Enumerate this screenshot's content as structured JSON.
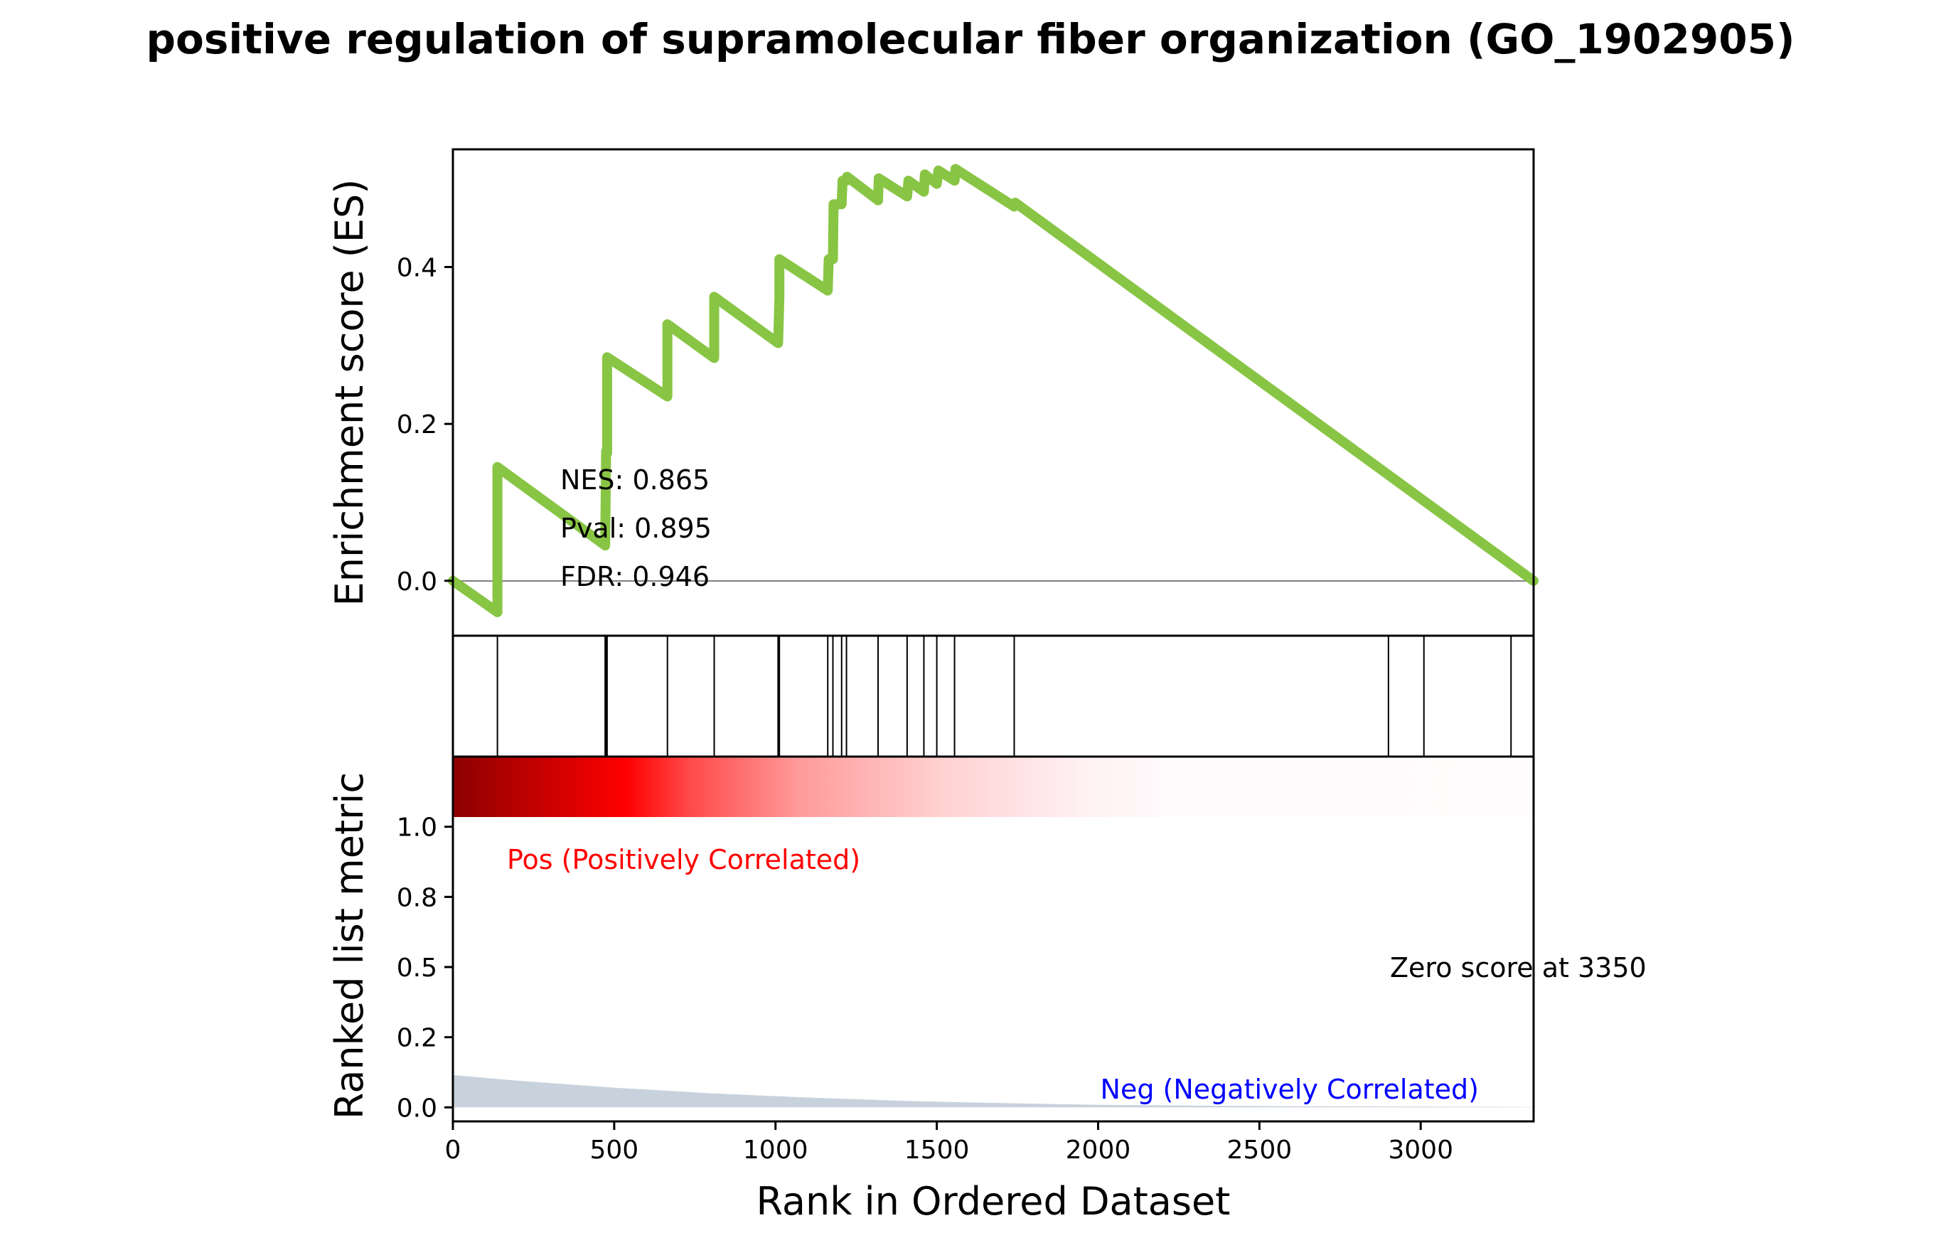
{
  "chart_data": {
    "type": "line",
    "title": "positive regulation of supramolecular fiber organization (GO_1902905)",
    "xlabel": "Rank in Ordered Dataset",
    "xlim": [
      0,
      3350
    ],
    "x_ticks": [
      "0",
      "500",
      "1000",
      "1500",
      "2000",
      "2500",
      "3000"
    ],
    "x_tick_values": [
      0,
      500,
      1000,
      1500,
      2000,
      2500,
      3000
    ],
    "es_panel": {
      "ylabel": "Enrichment score (ES)",
      "ylim": [
        -0.07,
        0.55
      ],
      "y_ticks": [
        "0.0",
        "0.2",
        "0.4"
      ],
      "y_tick_values": [
        0.0,
        0.2,
        0.4
      ],
      "series": [
        {
          "color": "#88c544",
          "x": [
            0,
            138,
            138,
            472,
            475,
            478,
            478,
            665,
            665,
            810,
            810,
            1008,
            1012,
            1012,
            1162,
            1165,
            1178,
            1180,
            1205,
            1208,
            1220,
            1222,
            1318,
            1320,
            1408,
            1412,
            1460,
            1463,
            1500,
            1505,
            1555,
            1558,
            1740,
            1743,
            3350
          ],
          "y": [
            0.0,
            -0.04,
            0.145,
            0.045,
            0.165,
            0.163,
            0.285,
            0.235,
            0.327,
            0.284,
            0.362,
            0.303,
            0.36,
            0.41,
            0.37,
            0.41,
            0.41,
            0.48,
            0.48,
            0.51,
            0.51,
            0.515,
            0.485,
            0.513,
            0.49,
            0.51,
            0.496,
            0.518,
            0.506,
            0.523,
            0.51,
            0.525,
            0.477,
            0.482,
            0.0
          ]
        }
      ],
      "annotations": [
        "NES: 0.865",
        "Pval: 0.895",
        "FDR: 0.946"
      ]
    },
    "hits_panel": {
      "hit_ranks": [
        138,
        472,
        475,
        478,
        665,
        810,
        1008,
        1012,
        1162,
        1178,
        1205,
        1220,
        1318,
        1408,
        1460,
        1500,
        1555,
        1740,
        2900,
        3010,
        3280
      ]
    },
    "metric_panel": {
      "ylabel": "Ranked list metric",
      "ylim": [
        -0.05,
        1.25
      ],
      "y_ticks": [
        "0.0",
        "0.2",
        "0.5",
        "0.8",
        "1.0"
      ],
      "y_tick_values": [
        0.0,
        0.25,
        0.5,
        0.75,
        1.0
      ],
      "metric_x": [
        0,
        200,
        500,
        800,
        1100,
        1400,
        1700,
        2000,
        2300,
        2600,
        2900,
        3200,
        3350
      ],
      "metric_y": [
        0.115,
        0.095,
        0.07,
        0.05,
        0.035,
        0.023,
        0.015,
        0.009,
        0.006,
        0.004,
        0.003,
        0.002,
        0.001
      ],
      "fill_color": "#c7d2dc",
      "heatmap_colors": [
        "#8b0000",
        "#ff0000",
        "#ffffff"
      ],
      "pos_label": "Pos (Positively Correlated)",
      "pos_color": "#ff0000",
      "neg_label": "Neg (Negatively Correlated)",
      "neg_color": "#0000ff",
      "zero_label": "Zero score at 3350"
    }
  }
}
